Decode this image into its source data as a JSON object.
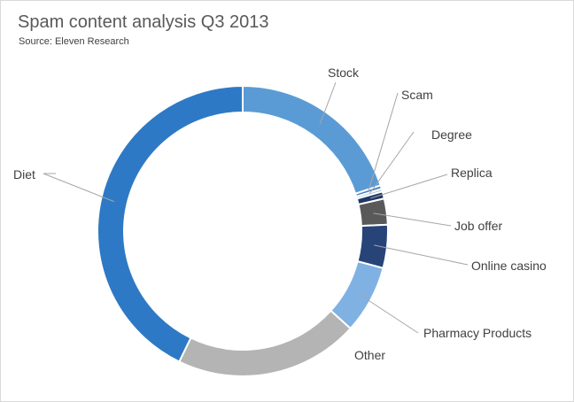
{
  "chart_data": {
    "type": "pie",
    "donut": true,
    "title": "Spam content analysis Q3 2013",
    "subtitle": "Source: Eleven Research",
    "legend": "none",
    "slices": [
      {
        "label": "Stock",
        "value": 19.9,
        "color": "#5b9bd5"
      },
      {
        "label": "Scam",
        "value": 0.4,
        "color": "#4a84c0"
      },
      {
        "label": "Degree",
        "value": 0.3,
        "color": "#9dc3e6"
      },
      {
        "label": "Replica",
        "value": 0.8,
        "color": "#1f3864"
      },
      {
        "label": "Job offer",
        "value": 2.9,
        "color": "#595959"
      },
      {
        "label": "Online casino",
        "value": 4.8,
        "color": "#264478"
      },
      {
        "label": "Pharmacy Products",
        "value": 7.6,
        "color": "#7fb1e3"
      },
      {
        "label": "Other",
        "value": 20.5,
        "color": "#b4b4b4"
      },
      {
        "label": "Diet",
        "value": 42.8,
        "color": "#2e79c5"
      }
    ]
  }
}
